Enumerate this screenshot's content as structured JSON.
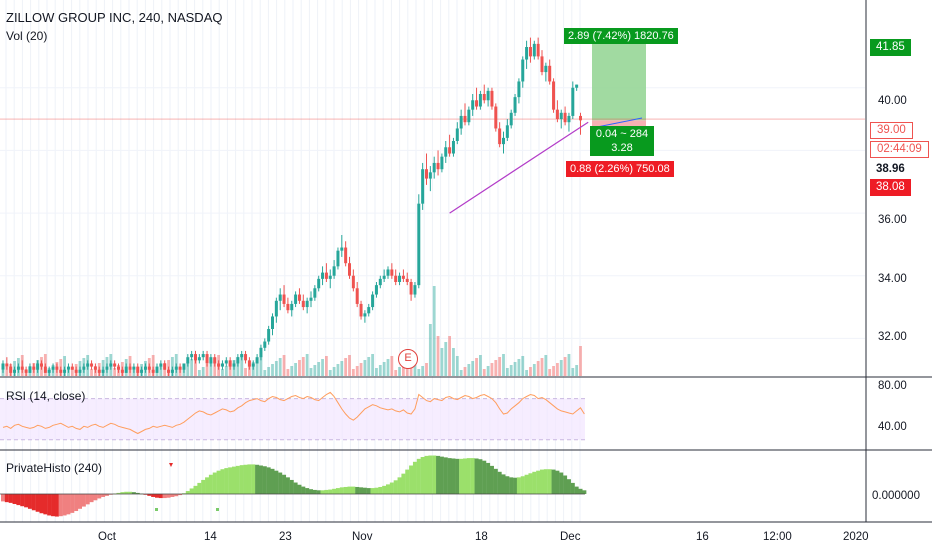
{
  "header": {
    "title": "ZILLOW GROUP INC, 240, NASDAQ",
    "volume_label": "Vol (20)"
  },
  "rsi_panel": {
    "label": "RSI (14, close)",
    "levels": [
      "80.00",
      "40.00"
    ]
  },
  "histo_panel": {
    "label": "PrivateHisto (240)",
    "zero_label": "0.000000"
  },
  "price_axis": {
    "ticks": [
      "40.00",
      "36.00",
      "34.00",
      "32.00"
    ]
  },
  "price_tags": {
    "target": "41.85",
    "current": "39.00",
    "countdown": "02:44:09",
    "last": "38.96",
    "stop": "38.08"
  },
  "position_tool": {
    "profit_label": "2.89 (7.42%) 1820.76",
    "center_line1": "0.04 ~ 284",
    "center_line2": "3.28",
    "loss_label": "0.88 (2.26%) 750.08"
  },
  "time_axis": {
    "ticks": [
      "Oct",
      "14",
      "23",
      "Nov",
      "18",
      "Dec",
      "16",
      "12:00",
      "2020"
    ]
  },
  "earnings_marker": "E",
  "colors": {
    "up": "#26a69a",
    "down": "#ef5350",
    "profit_zone": "#90d490",
    "profit_tag": "#089a1e",
    "loss_tag": "#ee1c25",
    "trendline": "#b33cc8",
    "rsi_line": "#ff9e5e",
    "rsi_band": "#f2e6ff"
  },
  "chart_data": {
    "type": "candlestick",
    "title": "ZILLOW GROUP INC, 240, NASDAQ",
    "x_range": [
      "Sep 26",
      "Dec 2"
    ],
    "ylim": [
      30.8,
      42.8
    ],
    "candles": [
      [
        31.0,
        31.3,
        30.9,
        31.2
      ],
      [
        31.2,
        31.4,
        31.0,
        31.1
      ],
      [
        31.1,
        31.2,
        30.8,
        30.9
      ],
      [
        30.9,
        31.1,
        30.8,
        31.0
      ],
      [
        31.0,
        31.2,
        30.9,
        31.1
      ],
      [
        31.1,
        31.3,
        30.9,
        31.0
      ],
      [
        31.0,
        31.1,
        30.8,
        30.9
      ],
      [
        30.9,
        31.2,
        30.9,
        31.1
      ],
      [
        31.1,
        31.2,
        30.9,
        31.0
      ],
      [
        31.0,
        31.3,
        30.9,
        31.2
      ],
      [
        31.2,
        31.3,
        31.0,
        31.1
      ],
      [
        31.1,
        31.2,
        30.9,
        30.9
      ],
      [
        30.9,
        31.1,
        30.8,
        31.0
      ],
      [
        31.0,
        31.2,
        30.9,
        31.1
      ],
      [
        31.1,
        31.2,
        30.9,
        31.0
      ],
      [
        31.0,
        31.1,
        30.8,
        30.9
      ],
      [
        30.9,
        31.1,
        30.8,
        31.0
      ],
      [
        31.0,
        31.2,
        30.9,
        31.1
      ],
      [
        31.1,
        31.2,
        31.0,
        31.0
      ],
      [
        31.0,
        31.1,
        30.8,
        30.9
      ],
      [
        30.9,
        31.1,
        30.8,
        31.0
      ],
      [
        31.0,
        31.2,
        30.9,
        31.1
      ],
      [
        31.1,
        31.3,
        31.0,
        31.2
      ],
      [
        31.2,
        31.3,
        31.0,
        31.1
      ],
      [
        31.1,
        31.2,
        30.9,
        31.0
      ],
      [
        31.0,
        31.1,
        30.8,
        30.9
      ],
      [
        30.9,
        31.1,
        30.8,
        31.0
      ],
      [
        31.0,
        31.2,
        30.9,
        31.1
      ],
      [
        31.1,
        31.3,
        31.0,
        31.2
      ],
      [
        31.2,
        31.3,
        31.0,
        31.1
      ],
      [
        31.1,
        31.2,
        30.9,
        31.0
      ],
      [
        31.0,
        31.1,
        30.8,
        30.9
      ],
      [
        30.9,
        31.2,
        30.9,
        31.1
      ],
      [
        31.1,
        31.2,
        30.9,
        31.0
      ],
      [
        31.0,
        31.2,
        30.9,
        31.1
      ],
      [
        31.1,
        31.2,
        30.8,
        30.9
      ],
      [
        30.9,
        31.1,
        30.8,
        31.0
      ],
      [
        31.0,
        31.2,
        30.9,
        31.1
      ],
      [
        31.1,
        31.2,
        30.9,
        31.0
      ],
      [
        31.0,
        31.1,
        30.8,
        30.9
      ],
      [
        30.9,
        31.2,
        30.9,
        31.1
      ],
      [
        31.1,
        31.3,
        31.0,
        31.2
      ],
      [
        31.2,
        31.3,
        31.0,
        31.0
      ],
      [
        31.0,
        31.1,
        30.8,
        30.9
      ],
      [
        30.9,
        31.1,
        30.8,
        31.0
      ],
      [
        31.0,
        31.2,
        30.9,
        31.1
      ],
      [
        31.1,
        31.2,
        30.9,
        31.0
      ],
      [
        31.0,
        31.2,
        30.9,
        31.2
      ],
      [
        31.2,
        31.5,
        31.1,
        31.4
      ],
      [
        31.4,
        31.6,
        31.3,
        31.5
      ],
      [
        31.5,
        31.6,
        31.2,
        31.3
      ],
      [
        31.3,
        31.5,
        31.2,
        31.4
      ],
      [
        31.4,
        31.6,
        31.3,
        31.5
      ],
      [
        31.5,
        31.6,
        31.1,
        31.2
      ],
      [
        31.2,
        31.5,
        31.1,
        31.4
      ],
      [
        31.4,
        31.5,
        31.1,
        31.2
      ],
      [
        31.2,
        31.3,
        31.0,
        31.1
      ],
      [
        31.1,
        31.3,
        31.0,
        31.2
      ],
      [
        31.2,
        31.4,
        31.1,
        31.3
      ],
      [
        31.3,
        31.4,
        31.0,
        31.1
      ],
      [
        31.1,
        31.3,
        31.0,
        31.2
      ],
      [
        31.2,
        31.5,
        31.1,
        31.4
      ],
      [
        31.4,
        31.6,
        31.3,
        31.5
      ],
      [
        31.5,
        31.6,
        31.2,
        31.3
      ],
      [
        31.3,
        31.4,
        31.0,
        31.1
      ],
      [
        31.1,
        31.3,
        31.0,
        31.2
      ],
      [
        31.2,
        31.5,
        31.2,
        31.4
      ],
      [
        31.4,
        31.8,
        31.3,
        31.7
      ],
      [
        31.7,
        32.0,
        31.6,
        31.9
      ],
      [
        31.9,
        32.4,
        31.8,
        32.3
      ],
      [
        32.3,
        32.8,
        32.1,
        32.7
      ],
      [
        32.7,
        33.3,
        32.5,
        33.2
      ],
      [
        33.2,
        33.6,
        32.9,
        33.4
      ],
      [
        33.4,
        33.7,
        33.0,
        33.1
      ],
      [
        33.1,
        33.3,
        32.8,
        32.9
      ],
      [
        32.9,
        33.2,
        32.7,
        33.1
      ],
      [
        33.1,
        33.5,
        33.0,
        33.4
      ],
      [
        33.4,
        33.6,
        33.1,
        33.2
      ],
      [
        33.2,
        33.4,
        32.9,
        33.0
      ],
      [
        33.0,
        33.3,
        32.8,
        33.2
      ],
      [
        33.2,
        33.5,
        33.0,
        33.3
      ],
      [
        33.3,
        33.7,
        33.2,
        33.6
      ],
      [
        33.6,
        34.0,
        33.5,
        33.9
      ],
      [
        33.9,
        34.3,
        33.7,
        34.1
      ],
      [
        34.1,
        34.4,
        33.8,
        33.9
      ],
      [
        33.9,
        34.2,
        33.6,
        34.0
      ],
      [
        34.0,
        34.5,
        33.9,
        34.3
      ],
      [
        34.3,
        34.9,
        34.2,
        34.8
      ],
      [
        34.8,
        35.3,
        34.6,
        34.9
      ],
      [
        34.9,
        35.1,
        34.3,
        34.4
      ],
      [
        34.4,
        34.6,
        33.9,
        34.0
      ],
      [
        34.0,
        34.2,
        33.5,
        33.6
      ],
      [
        33.6,
        33.8,
        33.0,
        33.1
      ],
      [
        33.1,
        33.2,
        32.6,
        32.7
      ],
      [
        32.7,
        32.9,
        32.5,
        32.8
      ],
      [
        32.8,
        33.1,
        32.7,
        33.0
      ],
      [
        33.0,
        33.5,
        32.9,
        33.4
      ],
      [
        33.4,
        33.8,
        33.3,
        33.7
      ],
      [
        33.7,
        34.0,
        33.6,
        33.9
      ],
      [
        33.9,
        34.2,
        33.8,
        34.0
      ],
      [
        34.0,
        34.3,
        33.9,
        34.2
      ],
      [
        34.2,
        34.4,
        33.9,
        34.0
      ],
      [
        34.0,
        34.2,
        33.7,
        33.8
      ],
      [
        33.8,
        34.1,
        33.7,
        34.0
      ],
      [
        34.0,
        34.2,
        33.8,
        33.9
      ],
      [
        33.9,
        34.1,
        33.7,
        33.8
      ],
      [
        33.8,
        33.9,
        33.2,
        33.4
      ],
      [
        33.4,
        33.8,
        33.3,
        33.7
      ],
      [
        33.7,
        36.6,
        33.6,
        36.3
      ],
      [
        36.3,
        37.6,
        36.1,
        37.4
      ],
      [
        37.4,
        37.9,
        36.9,
        37.1
      ],
      [
        37.1,
        37.5,
        36.7,
        37.3
      ],
      [
        37.3,
        37.8,
        37.1,
        37.6
      ],
      [
        37.6,
        38.0,
        37.2,
        37.4
      ],
      [
        37.4,
        37.9,
        37.3,
        37.8
      ],
      [
        37.8,
        38.3,
        37.6,
        38.1
      ],
      [
        38.1,
        38.5,
        37.8,
        37.9
      ],
      [
        37.9,
        38.4,
        37.8,
        38.3
      ],
      [
        38.3,
        38.9,
        38.2,
        38.7
      ],
      [
        38.7,
        39.3,
        38.5,
        39.1
      ],
      [
        39.1,
        39.5,
        38.8,
        38.9
      ],
      [
        38.9,
        39.4,
        38.8,
        39.3
      ],
      [
        39.3,
        39.8,
        39.1,
        39.6
      ],
      [
        39.6,
        40.0,
        39.3,
        39.4
      ],
      [
        39.4,
        39.9,
        39.3,
        39.8
      ],
      [
        39.8,
        40.1,
        39.5,
        39.6
      ],
      [
        39.6,
        40.0,
        39.4,
        39.9
      ],
      [
        39.9,
        40.0,
        39.3,
        39.4
      ],
      [
        39.4,
        39.5,
        38.6,
        38.7
      ],
      [
        38.7,
        38.9,
        38.1,
        38.2
      ],
      [
        38.2,
        38.6,
        37.9,
        38.4
      ],
      [
        38.4,
        39.0,
        38.3,
        38.8
      ],
      [
        38.8,
        39.3,
        38.7,
        39.2
      ],
      [
        39.2,
        39.8,
        39.1,
        39.7
      ],
      [
        39.7,
        40.3,
        39.5,
        40.2
      ],
      [
        40.2,
        41.0,
        40.0,
        40.9
      ],
      [
        40.9,
        41.5,
        40.6,
        41.3
      ],
      [
        41.3,
        41.6,
        40.8,
        41.0
      ],
      [
        41.0,
        41.5,
        40.9,
        41.4
      ],
      [
        41.4,
        41.6,
        40.9,
        41.0
      ],
      [
        41.0,
        41.2,
        40.4,
        40.5
      ],
      [
        40.5,
        40.8,
        40.2,
        40.7
      ],
      [
        40.7,
        40.9,
        40.1,
        40.2
      ],
      [
        40.2,
        40.3,
        39.2,
        39.3
      ],
      [
        39.3,
        39.6,
        38.9,
        39.0
      ],
      [
        39.0,
        39.3,
        38.7,
        39.2
      ],
      [
        39.2,
        39.4,
        38.8,
        38.9
      ],
      [
        38.9,
        39.2,
        38.6,
        39.1
      ],
      [
        39.1,
        40.2,
        39.0,
        40.0
      ],
      [
        40.0,
        40.1,
        39.9,
        40.1
      ],
      [
        39.1,
        39.2,
        38.5,
        38.96
      ]
    ],
    "trendline": [
      [
        116,
        36.0
      ],
      [
        152,
        38.9
      ]
    ],
    "position": {
      "entry": 38.96,
      "target": 41.85,
      "stop": 38.08
    },
    "rsi": {
      "name": "RSI (14, close)",
      "values": [
        42,
        43,
        41,
        44,
        45,
        43,
        42,
        41,
        42,
        44,
        43,
        41,
        42,
        44,
        45,
        46,
        44,
        42,
        43,
        41,
        40,
        43,
        42,
        44,
        45,
        43,
        42,
        44,
        46,
        45,
        43,
        42,
        41,
        40,
        38,
        36,
        38,
        40,
        41,
        43,
        42,
        43,
        44,
        43,
        42,
        44,
        45,
        47,
        50,
        53,
        56,
        58,
        57,
        55,
        54,
        56,
        58,
        60,
        59,
        57,
        58,
        61,
        63,
        66,
        68,
        69,
        70,
        68,
        67,
        70,
        72,
        71,
        69,
        68,
        70,
        72,
        73,
        71,
        70,
        72,
        71,
        69,
        68,
        71,
        74,
        76,
        72,
        66,
        60,
        55,
        51,
        49,
        52,
        56,
        60,
        62,
        64,
        63,
        61,
        60,
        59,
        60,
        58,
        57,
        59,
        56,
        55,
        60,
        74,
        71,
        68,
        67,
        70,
        69,
        68,
        71,
        72,
        70,
        69,
        71,
        73,
        72,
        70,
        71,
        73,
        74,
        72,
        70,
        66,
        60,
        55,
        56,
        60,
        63,
        66,
        70,
        72,
        74,
        73,
        70,
        71,
        69,
        66,
        63,
        60,
        58,
        57,
        56,
        55,
        58,
        61,
        55
      ]
    },
    "histogram": {
      "name": "PrivateHisto (240)",
      "values": [
        -0.2,
        -0.22,
        -0.24,
        -0.27,
        -0.3,
        -0.33,
        -0.36,
        -0.4,
        -0.44,
        -0.48,
        -0.52,
        -0.55,
        -0.58,
        -0.6,
        -0.61,
        -0.6,
        -0.58,
        -0.55,
        -0.51,
        -0.46,
        -0.4,
        -0.34,
        -0.28,
        -0.22,
        -0.17,
        -0.12,
        -0.08,
        -0.05,
        -0.02,
        0.01,
        0.03,
        0.05,
        0.06,
        0.06,
        0.05,
        0.03,
        0.01,
        -0.02,
        -0.05,
        -0.08,
        -0.1,
        -0.11,
        -0.11,
        -0.1,
        -0.08,
        -0.06,
        -0.03,
        0.02,
        0.08,
        0.15,
        0.22,
        0.3,
        0.38,
        0.45,
        0.52,
        0.58,
        0.63,
        0.67,
        0.7,
        0.72,
        0.74,
        0.76,
        0.78,
        0.79,
        0.8,
        0.8,
        0.79,
        0.77,
        0.75,
        0.72,
        0.68,
        0.63,
        0.58,
        0.52,
        0.45,
        0.38,
        0.31,
        0.25,
        0.2,
        0.16,
        0.13,
        0.11,
        0.1,
        0.1,
        0.11,
        0.12,
        0.14,
        0.16,
        0.18,
        0.19,
        0.2,
        0.2,
        0.19,
        0.18,
        0.17,
        0.16,
        0.16,
        0.17,
        0.19,
        0.22,
        0.26,
        0.31,
        0.37,
        0.45,
        0.55,
        0.66,
        0.77,
        0.87,
        0.95,
        1.0,
        1.03,
        1.04,
        1.04,
        1.03,
        1.01,
        0.99,
        0.97,
        0.96,
        0.95,
        0.95,
        0.96,
        0.97,
        0.97,
        0.96,
        0.94,
        0.9,
        0.84,
        0.76,
        0.68,
        0.6,
        0.53,
        0.48,
        0.45,
        0.44,
        0.45,
        0.48,
        0.52,
        0.56,
        0.6,
        0.63,
        0.66,
        0.67,
        0.67,
        0.66,
        0.63,
        0.58,
        0.5,
        0.4,
        0.3,
        0.2,
        0.14,
        0.1
      ]
    }
  }
}
